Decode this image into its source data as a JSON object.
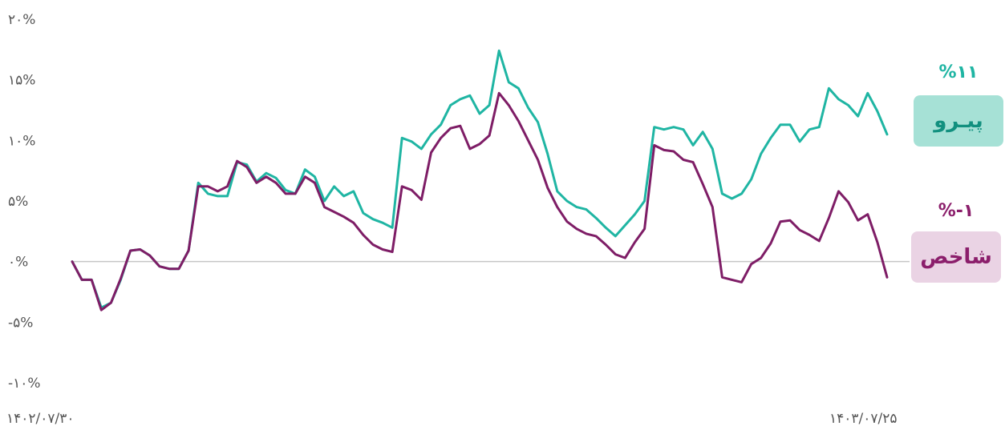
{
  "chart_data": {
    "type": "line",
    "y_ticks": [
      {
        "value": -10,
        "label": "-۱۰%"
      },
      {
        "value": -5,
        "label": "-۵%"
      },
      {
        "value": 0,
        "label": "۰%"
      },
      {
        "value": 5,
        "label": "۵%"
      },
      {
        "value": 10,
        "label": "۱۰%"
      },
      {
        "value": 15,
        "label": "۱۵%"
      },
      {
        "value": 20,
        "label": "۲۰%"
      }
    ],
    "ylim": [
      -10,
      20
    ],
    "x_labels": [
      {
        "position": "start",
        "label": "۱۴۰۲/۰۷/۳۰"
      },
      {
        "position": "end",
        "label": "۱۴۰۳/۰۷/۲۵"
      }
    ],
    "baseline": 0,
    "grid": false,
    "legend_placement": "right",
    "series": [
      {
        "name": "پیـرو",
        "final_label": "%۱۱",
        "color": "#1fb5a3",
        "badge_color": "#a6e1d6",
        "values": [
          0,
          -1.5,
          -1.5,
          -3.8,
          -3.4,
          -1.5,
          0.9,
          1,
          0.5,
          -0.4,
          -0.6,
          -0.6,
          0.9,
          6.5,
          5.6,
          5.4,
          5.4,
          8.2,
          8,
          6.6,
          7.3,
          6.9,
          5.9,
          5.6,
          7.6,
          7,
          5,
          6.2,
          5.4,
          5.8,
          4,
          3.5,
          3.2,
          2.8,
          10.2,
          9.9,
          9.3,
          10.5,
          11.3,
          12.9,
          13.4,
          13.7,
          12.2,
          12.9,
          17.4,
          14.8,
          14.3,
          12.7,
          11.5,
          8.9,
          5.8,
          5,
          4.5,
          4.3,
          3.6,
          2.8,
          2.1,
          3,
          3.9,
          5,
          11.1,
          10.9,
          11.1,
          10.9,
          9.6,
          10.7,
          9.3,
          5.6,
          5.2,
          5.6,
          6.8,
          8.9,
          10.2,
          11.3,
          11.3,
          9.9,
          10.9,
          11.1,
          14.3,
          13.4,
          12.9,
          12,
          13.9,
          12.4,
          10.5
        ]
      },
      {
        "name": "شاخص",
        "final_label": "%-۱",
        "color": "#7e1d66",
        "badge_color": "#ead3e4",
        "values": [
          0,
          -1.5,
          -1.5,
          -4,
          -3.4,
          -1.4,
          0.9,
          1,
          0.5,
          -0.4,
          -0.6,
          -0.6,
          0.9,
          6.2,
          6.2,
          5.8,
          6.2,
          8.3,
          7.8,
          6.5,
          7,
          6.5,
          5.6,
          5.6,
          7,
          6.5,
          4.5,
          4.1,
          3.7,
          3.2,
          2.2,
          1.4,
          1,
          0.8,
          6.2,
          5.9,
          5.1,
          9,
          10.2,
          11,
          11.2,
          9.3,
          9.7,
          10.4,
          13.9,
          12.9,
          11.6,
          10,
          8.4,
          6.1,
          4.5,
          3.3,
          2.7,
          2.3,
          2.1,
          1.4,
          0.6,
          0.3,
          1.6,
          2.7,
          9.6,
          9.2,
          9.1,
          8.4,
          8.2,
          6.4,
          4.5,
          -1.3,
          -1.5,
          -1.7,
          -0.2,
          0.3,
          1.5,
          3.3,
          3.4,
          2.6,
          2.2,
          1.7,
          3.6,
          5.8,
          4.9,
          3.4,
          3.9,
          1.6,
          -1.3
        ]
      }
    ]
  }
}
